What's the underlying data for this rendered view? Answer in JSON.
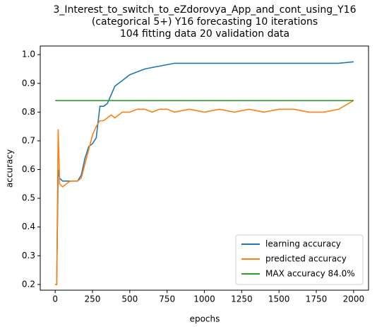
{
  "chart_data": {
    "type": "line",
    "title": "3_Interest_to_switch_to_eZdorovya_App_and_cont_using_Y16",
    "subtitle": [
      "(categorical 5+)    Y16 forecasting    10 iterations",
      "104 fitting data    20 validation data"
    ],
    "x_label": "epochs",
    "y_label": "accuracy",
    "x": [
      0,
      10,
      20,
      30,
      50,
      75,
      100,
      125,
      150,
      175,
      200,
      225,
      250,
      275,
      300,
      325,
      350,
      375,
      400,
      450,
      500,
      550,
      600,
      650,
      700,
      750,
      800,
      900,
      1000,
      1100,
      1200,
      1300,
      1400,
      1500,
      1600,
      1700,
      1800,
      1900,
      2000
    ],
    "series": [
      {
        "name": "learning accuracy",
        "color": "#1f77b4",
        "values": [
          0.2,
          0.2,
          0.6,
          0.57,
          0.56,
          0.56,
          0.56,
          0.56,
          0.56,
          0.58,
          0.64,
          0.68,
          0.69,
          0.71,
          0.82,
          0.82,
          0.83,
          0.86,
          0.89,
          0.91,
          0.93,
          0.94,
          0.95,
          0.955,
          0.96,
          0.965,
          0.97,
          0.97,
          0.97,
          0.97,
          0.97,
          0.97,
          0.97,
          0.97,
          0.97,
          0.97,
          0.97,
          0.97,
          0.975
        ]
      },
      {
        "name": "predicted accuracy",
        "color": "#ff7f0e",
        "values": [
          0.2,
          0.2,
          0.74,
          0.55,
          0.54,
          0.55,
          0.56,
          0.56,
          0.56,
          0.57,
          0.62,
          0.67,
          0.72,
          0.75,
          0.77,
          0.77,
          0.78,
          0.79,
          0.78,
          0.8,
          0.8,
          0.81,
          0.81,
          0.8,
          0.81,
          0.81,
          0.8,
          0.81,
          0.8,
          0.81,
          0.8,
          0.81,
          0.8,
          0.81,
          0.81,
          0.8,
          0.8,
          0.81,
          0.84
        ]
      },
      {
        "name": "MAX accuracy 84.0%",
        "color": "#2ca02c",
        "values": [
          0.84,
          0.84,
          0.84,
          0.84,
          0.84,
          0.84,
          0.84,
          0.84,
          0.84,
          0.84,
          0.84,
          0.84,
          0.84,
          0.84,
          0.84,
          0.84,
          0.84,
          0.84,
          0.84,
          0.84,
          0.84,
          0.84,
          0.84,
          0.84,
          0.84,
          0.84,
          0.84,
          0.84,
          0.84,
          0.84,
          0.84,
          0.84,
          0.84,
          0.84,
          0.84,
          0.84,
          0.84,
          0.84,
          0.84
        ]
      }
    ],
    "xlim": [
      -100,
      2100
    ],
    "ylim": [
      0.18,
      1.03
    ],
    "xticks": [
      0,
      250,
      500,
      750,
      1000,
      1250,
      1500,
      1750,
      2000
    ],
    "yticks": [
      0.2,
      0.3,
      0.4,
      0.5,
      0.6,
      0.7,
      0.8,
      0.9,
      {
        "value": 1,
        "label": "1.0"
      }
    ],
    "legend": "lower right"
  }
}
